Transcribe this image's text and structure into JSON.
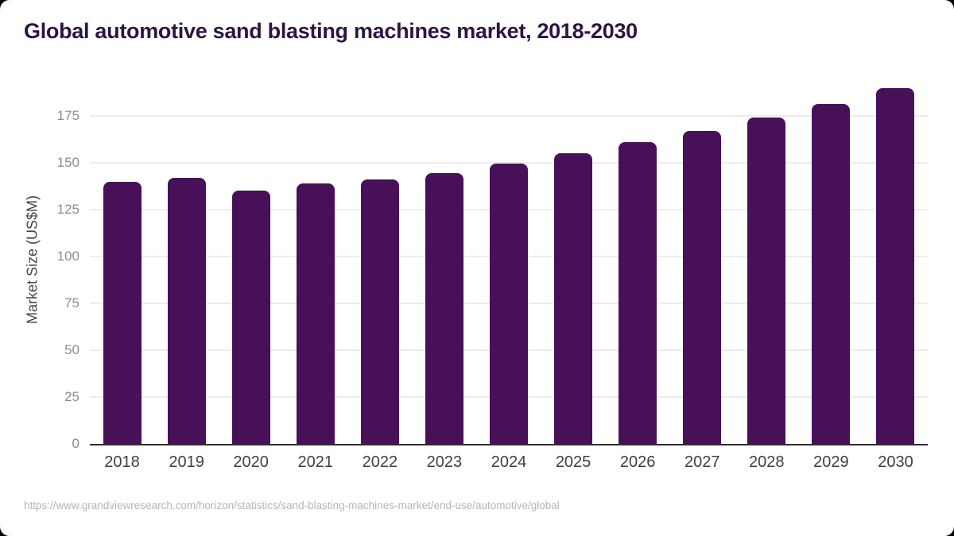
{
  "title": "Global automotive sand blasting machines market, 2018-2030",
  "footer": {
    "source_url": "https://www.grandviewresearch.com/horizon/statistics/sand-blasting-machines-market/end-use/automotive/global"
  },
  "colors": {
    "bar": "#471059",
    "title_text": "#2d1446",
    "gridline": "#ececec",
    "axis_line": "#2e2e2e",
    "tick_text": "#8c8c8c",
    "x_tick_text": "#3f3f3f",
    "source_text": "#b5b5b5",
    "card_background": "#ffffff",
    "page_background": "#000000"
  },
  "chart_data": {
    "type": "bar",
    "title": "Global automotive sand blasting machines market, 2018-2030",
    "categories": [
      "2018",
      "2019",
      "2020",
      "2021",
      "2022",
      "2023",
      "2024",
      "2025",
      "2026",
      "2027",
      "2028",
      "2029",
      "2030"
    ],
    "values": [
      140,
      142,
      135,
      139,
      141,
      144.5,
      149.5,
      155,
      161,
      167,
      174,
      181.5,
      190
    ],
    "xlabel": "",
    "ylabel": "Market Size (US$M)",
    "ylim": [
      0,
      196
    ],
    "yticks": [
      0,
      25,
      50,
      75,
      100,
      125,
      150,
      175
    ],
    "grid": "horizontal",
    "legend": "none",
    "bar_color": "#471059"
  }
}
